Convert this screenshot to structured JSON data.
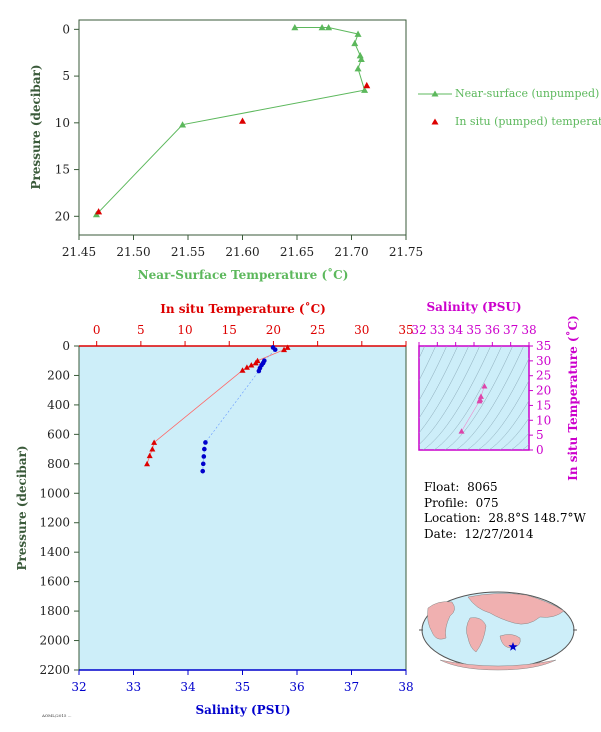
{
  "info": {
    "float_label": "Float:",
    "float": "8065",
    "profile_label": "Profile:",
    "profile": "075",
    "location_label": "Location:",
    "location": "28.8°S  148.7°W",
    "date_label": "Date:",
    "date": "12/27/2014"
  },
  "footer_text": "AOML/2015 ...",
  "colors": {
    "green": "#5cb85c",
    "red": "#dd0000",
    "blue": "#0000cc",
    "magenta": "#cc00cc",
    "plot_bg": "#cdeef9",
    "axis_green": "#3a5a3a"
  },
  "chart_data": [
    {
      "type": "line",
      "xlabel": "Near-Surface Temperature (˚C)",
      "ylabel": "Pressure (decibar)",
      "xlim": [
        21.45,
        21.75
      ],
      "ylim": [
        22,
        -1
      ],
      "x_ticks": [
        "21.45",
        "21.50",
        "21.55",
        "21.60",
        "21.65",
        "21.70",
        "21.75"
      ],
      "y_ticks": [
        "0",
        "5",
        "10",
        "15",
        "20"
      ],
      "series": [
        {
          "name": "Near-surface (unpumped) temperature.",
          "marker": "triangle",
          "color": "#5cb85c",
          "x": [
            21.648,
            21.673,
            21.679,
            21.706,
            21.703,
            21.708,
            21.709,
            21.706,
            21.712,
            21.545,
            21.466
          ],
          "y": [
            -0.2,
            -0.2,
            -0.2,
            0.5,
            1.5,
            2.8,
            3.2,
            4.2,
            6.5,
            10.2,
            19.8
          ]
        },
        {
          "name": "In situ (pumped) temperature.",
          "marker": "triangle",
          "color": "#dd0000",
          "x": [
            21.714,
            21.6,
            21.468
          ],
          "y": [
            6.0,
            9.8,
            19.5
          ]
        }
      ]
    },
    {
      "type": "scatter",
      "top_axis_label": "In situ Temperature (˚C)",
      "xlabel": "Salinity (PSU)",
      "ylabel": "Pressure (decibar)",
      "temp_lim": [
        -2,
        35
      ],
      "sal_lim": [
        32,
        38
      ],
      "ylim": [
        2200,
        0
      ],
      "temp_ticks": [
        "0",
        "5",
        "10",
        "15",
        "20",
        "25",
        "30",
        "35"
      ],
      "sal_ticks": [
        "32",
        "33",
        "34",
        "35",
        "36",
        "37",
        "38"
      ],
      "y_ticks": [
        "0",
        "200",
        "400",
        "600",
        "800",
        "1000",
        "1200",
        "1400",
        "1600",
        "1800",
        "2000",
        "2200"
      ],
      "series": [
        {
          "name": "In situ Temperature (˚C)",
          "color": "#dd0000",
          "marker": "triangle",
          "x": [
            21.6,
            21.2,
            18.2,
            18.0,
            17.5,
            17.0,
            16.5,
            6.5,
            6.3,
            6.0,
            5.7
          ],
          "y": [
            10,
            25,
            100,
            115,
            130,
            145,
            165,
            655,
            700,
            745,
            800
          ]
        },
        {
          "name": "Salinity (PSU)",
          "color": "#0000cc",
          "marker": "circle",
          "x": [
            35.56,
            35.6,
            35.4,
            35.38,
            35.35,
            35.32,
            35.3,
            34.32,
            34.3,
            34.29,
            34.28,
            34.27
          ],
          "y": [
            10,
            25,
            100,
            115,
            130,
            150,
            170,
            655,
            700,
            750,
            800,
            850
          ]
        }
      ]
    },
    {
      "type": "scatter",
      "xlabel": "Salinity (PSU)",
      "ylabel": "In situ Temperature (˚C)",
      "xlim": [
        32,
        38
      ],
      "ylim": [
        0,
        35
      ],
      "x_ticks": [
        "32",
        "33",
        "34",
        "35",
        "36",
        "37",
        "38"
      ],
      "y_ticks": [
        "0",
        "5",
        "10",
        "15",
        "20",
        "25",
        "30",
        "35"
      ],
      "series": [
        {
          "color": "#dd44aa",
          "marker": "triangle",
          "x": [
            35.57,
            35.38,
            35.33,
            35.3,
            34.32
          ],
          "y": [
            21.5,
            18.0,
            17.0,
            16.5,
            6.3
          ]
        }
      ]
    }
  ]
}
